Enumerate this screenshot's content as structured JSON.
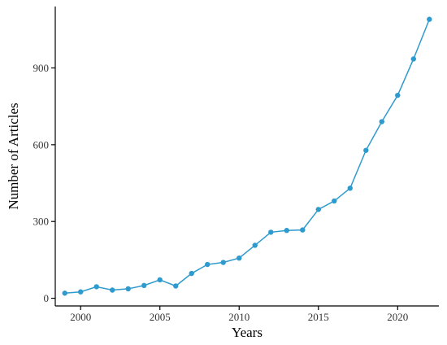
{
  "chart_data": {
    "type": "line",
    "title": "",
    "xlabel": "Years",
    "ylabel": "Number of Articles",
    "xlim": [
      1998.4,
      2022.6
    ],
    "ylim": [
      -30,
      1140
    ],
    "x_ticks": [
      2000,
      2005,
      2010,
      2015,
      2020
    ],
    "y_ticks": [
      0,
      300,
      600,
      900
    ],
    "grid": false,
    "legend": "none",
    "color": "#2E9ACD",
    "series": [
      {
        "x": [
          1999,
          2000,
          2001,
          2002,
          2003,
          2004,
          2005,
          2006,
          2007,
          2008,
          2009,
          2010,
          2011,
          2012,
          2013,
          2014,
          2015,
          2016,
          2017,
          2018,
          2019,
          2020,
          2021,
          2022
        ],
        "values": [
          20,
          25,
          45,
          32,
          37,
          50,
          72,
          48,
          97,
          132,
          140,
          157,
          207,
          258,
          265,
          267,
          347,
          380,
          430,
          578,
          690,
          793,
          935,
          1090
        ]
      }
    ]
  }
}
